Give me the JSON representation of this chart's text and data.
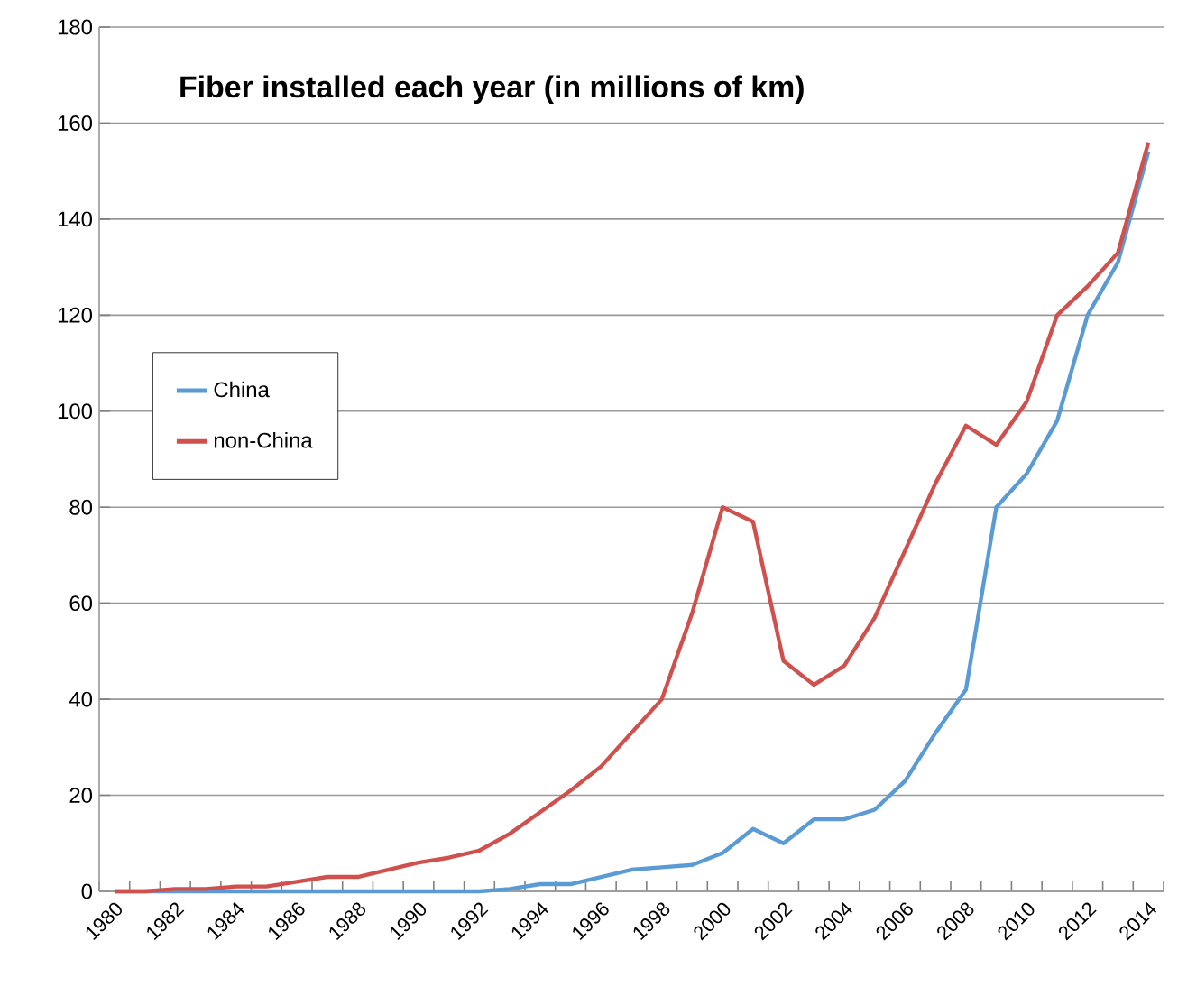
{
  "chart_data": {
    "type": "line",
    "title": "Fiber installed each year (in millions of km)",
    "categories": [
      "1980",
      null,
      "1982",
      null,
      "1984",
      null,
      "1986",
      null,
      "1988",
      null,
      "1990",
      null,
      "1992",
      null,
      "1994",
      null,
      "1996",
      null,
      "1998",
      null,
      "2000",
      null,
      "2002",
      null,
      "2004",
      null,
      "2006",
      null,
      "2008",
      null,
      "2010",
      null,
      "2012",
      null,
      "2014"
    ],
    "series": [
      {
        "name": "China",
        "color": "#5b9bd5",
        "values": [
          0,
          0,
          0,
          0,
          0,
          0,
          0,
          0,
          0,
          0,
          0,
          0,
          0,
          0.5,
          1.5,
          1.5,
          3,
          4.5,
          5,
          5.5,
          8,
          13,
          10,
          15,
          15,
          17,
          23,
          33,
          42,
          80,
          87,
          98,
          120,
          131,
          154
        ]
      },
      {
        "name": "non-China",
        "color": "#d0504d",
        "values": [
          0,
          0,
          0.5,
          0.5,
          1,
          1,
          2,
          3,
          3,
          4.5,
          6,
          7,
          8.5,
          12,
          16.5,
          21,
          26,
          33,
          40,
          58,
          80,
          77,
          48,
          43,
          47,
          57,
          71,
          85,
          97,
          93,
          102,
          120,
          126,
          133,
          156
        ]
      }
    ],
    "ylim": [
      0,
      180
    ],
    "yticks": [
      0,
      20,
      40,
      60,
      80,
      100,
      120,
      140,
      160,
      180
    ],
    "grid": "y",
    "legend": "left",
    "marker": "none",
    "line_style": "solid"
  }
}
